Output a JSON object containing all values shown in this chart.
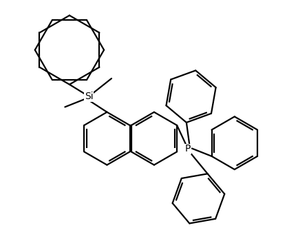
{
  "background_color": "#ffffff",
  "line_color": "#000000",
  "line_width": 1.6,
  "text_color": "#000000",
  "Si_label": "Si",
  "P_label": "P",
  "fig_width": 4.33,
  "fig_height": 3.37,
  "dpi": 100
}
